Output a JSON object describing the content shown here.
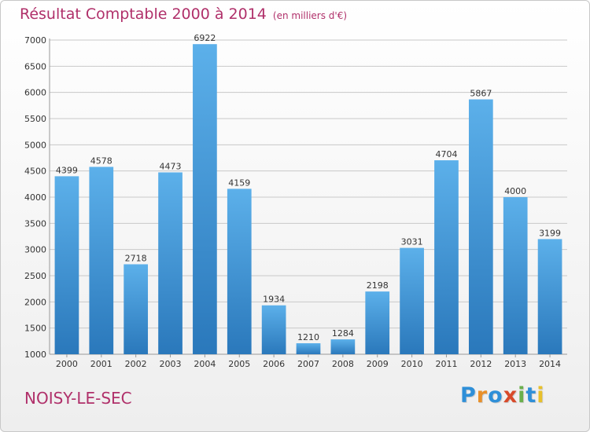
{
  "header": {
    "title": "Résultat Comptable 2000 à 2014",
    "subtitle": "(en milliers d'€)"
  },
  "footer": {
    "city": "NOISY-LE-SEC",
    "brand_letters": [
      "P",
      "r",
      "o",
      "x",
      "i",
      "t",
      "i"
    ],
    "brand_colors": [
      "#2e8fd8",
      "#e8902a",
      "#2e8fd8",
      "#d84a2a",
      "#6ab04c",
      "#2e8fd8",
      "#e8c02a"
    ]
  },
  "colors": {
    "bar_top": "#5cb0ea",
    "bar_bottom": "#2a78bb",
    "grid": "#c8c8c8",
    "accent": "#b0306a"
  },
  "chart_data": {
    "type": "bar",
    "categories": [
      "2000",
      "2001",
      "2002",
      "2003",
      "2004",
      "2005",
      "2006",
      "2007",
      "2008",
      "2009",
      "2010",
      "2011",
      "2012",
      "2013",
      "2014"
    ],
    "values": [
      4399,
      4578,
      2718,
      4473,
      6922,
      4159,
      1934,
      1210,
      1284,
      2198,
      3031,
      4704,
      5867,
      4000,
      3199
    ],
    "ylim": [
      1000,
      7000
    ],
    "yticks": [
      1000,
      1500,
      2000,
      2500,
      3000,
      3500,
      4000,
      4500,
      5000,
      5500,
      6000,
      6500,
      7000
    ],
    "grid": true,
    "title": "Résultat Comptable 2000 à 2014",
    "xlabel": "",
    "ylabel": ""
  }
}
